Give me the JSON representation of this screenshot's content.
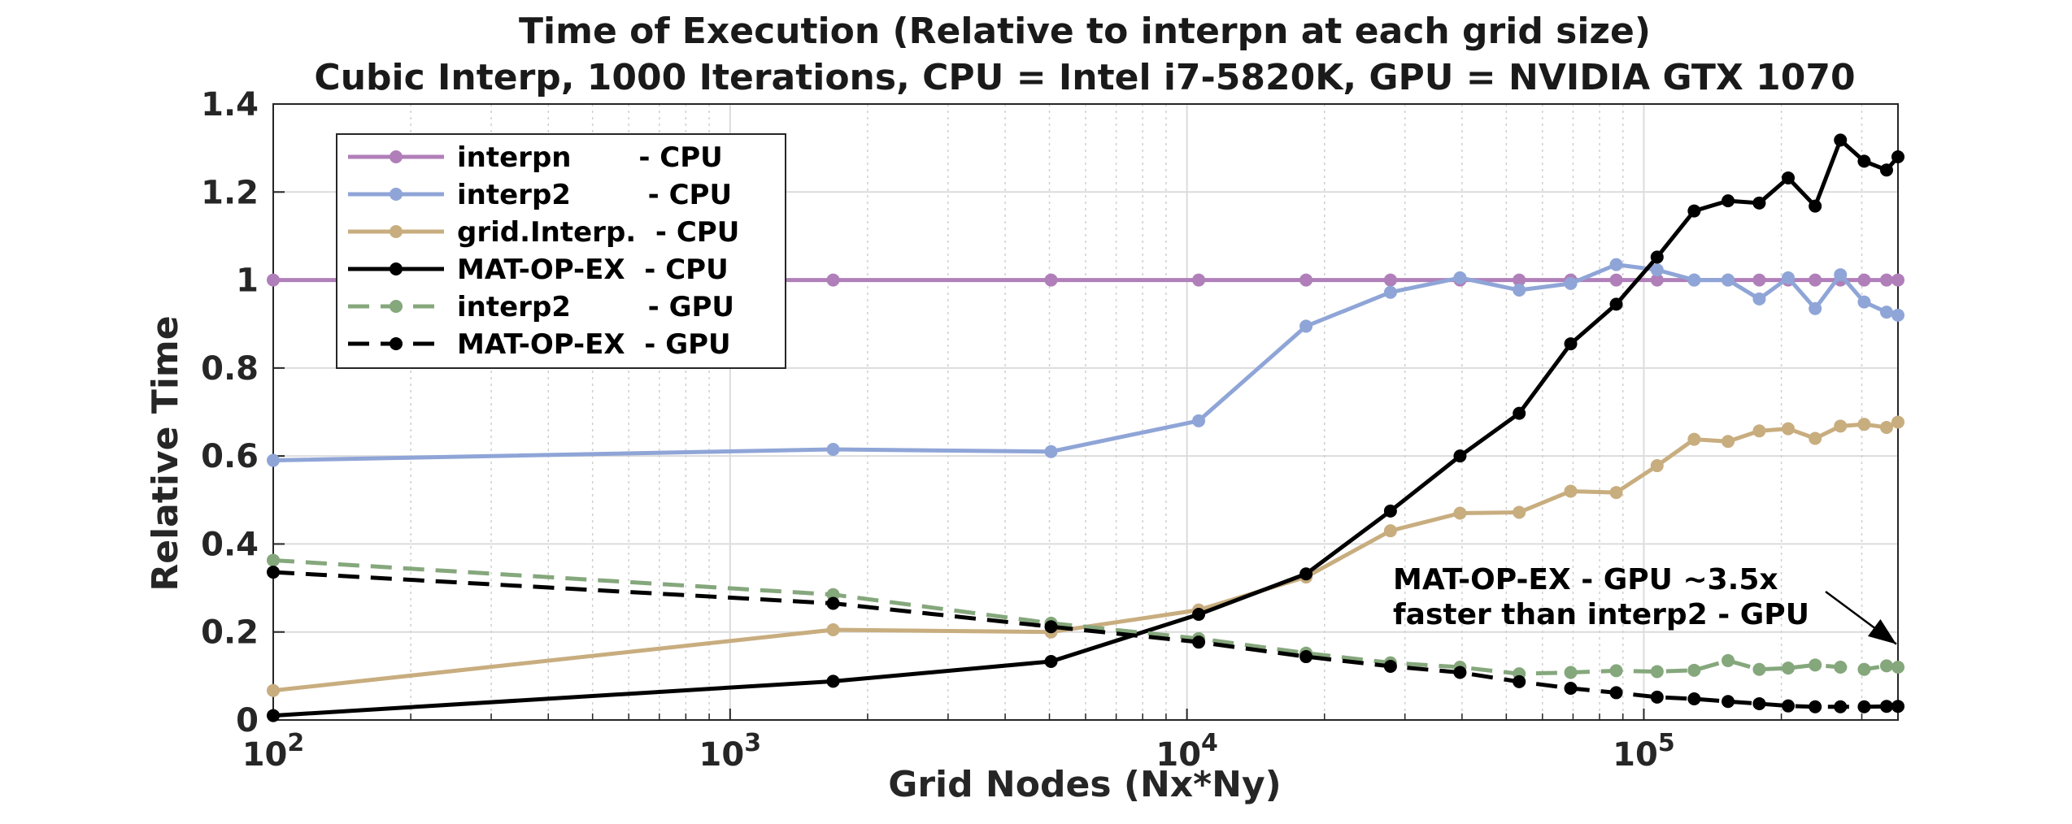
{
  "chart_data": {
    "type": "line",
    "title": "Time of Execution (Relative to interpn at each grid size)",
    "subtitle": "Cubic Interp, 1000 Iterations, CPU = Intel i7-5820K, GPU = NVIDIA GTX 1070",
    "xlabel": "Grid Nodes (Nx*Ny)",
    "ylabel": "Relative Time",
    "x_scale": "log",
    "xlim": [
      100,
      360000
    ],
    "ylim": [
      0,
      1.4
    ],
    "x_ticks": [
      {
        "value": 100,
        "base": "10",
        "exp": "2"
      },
      {
        "value": 1000,
        "base": "10",
        "exp": "3"
      },
      {
        "value": 10000,
        "base": "10",
        "exp": "4"
      },
      {
        "value": 100000,
        "base": "10",
        "exp": "5"
      }
    ],
    "y_ticks": [
      {
        "value": 0,
        "label": "0"
      },
      {
        "value": 0.2,
        "label": "0.2"
      },
      {
        "value": 0.4,
        "label": "0.4"
      },
      {
        "value": 0.6,
        "label": "0.6"
      },
      {
        "value": 0.8,
        "label": "0.8"
      },
      {
        "value": 1,
        "label": "1"
      },
      {
        "value": 1.2,
        "label": "1.2"
      },
      {
        "value": 1.4,
        "label": "1.4"
      }
    ],
    "grid": true,
    "legend_position": "top-left",
    "x": [
      100,
      1681,
      5041,
      10609,
      18225,
      27889,
      39601,
      53361,
      69169,
      87025,
      106929,
      128881,
      152881,
      178929,
      207025,
      237169,
      269361,
      303601,
      339889,
      360000
    ],
    "series": [
      {
        "name": "interpn       - CPU",
        "color": "#b07fb9",
        "dash": "solid",
        "values": [
          1,
          1,
          1,
          1,
          1,
          1,
          1,
          1,
          1,
          1,
          1,
          1,
          1,
          1,
          1,
          1,
          1,
          1,
          1,
          1
        ]
      },
      {
        "name": "interp2        - CPU",
        "color": "#8fa5d7",
        "dash": "solid",
        "values": [
          0.59,
          0.615,
          0.61,
          0.68,
          0.895,
          0.972,
          1.005,
          0.977,
          0.992,
          1.035,
          1.023,
          1.0,
          1.0,
          0.957,
          1.005,
          0.935,
          1.012,
          0.95,
          0.927,
          0.92
        ]
      },
      {
        "name": "grid.Interp.  - CPU",
        "color": "#c8ad7f",
        "dash": "solid",
        "values": [
          0.067,
          0.205,
          0.2,
          0.25,
          0.325,
          0.43,
          0.47,
          0.472,
          0.52,
          0.517,
          0.578,
          0.638,
          0.633,
          0.657,
          0.662,
          0.64,
          0.668,
          0.672,
          0.665,
          0.677
        ]
      },
      {
        "name": "MAT-OP-EX  - CPU",
        "color": "#000000",
        "dash": "solid",
        "values": [
          0.01,
          0.088,
          0.133,
          0.24,
          0.332,
          0.475,
          0.6,
          0.697,
          0.855,
          0.945,
          1.052,
          1.157,
          1.18,
          1.175,
          1.232,
          1.168,
          1.318,
          1.27,
          1.25,
          1.28
        ]
      },
      {
        "name": "interp2        - GPU",
        "color": "#85a77c",
        "dash": "dashed",
        "values": [
          0.363,
          0.285,
          0.22,
          0.185,
          0.152,
          0.13,
          0.12,
          0.105,
          0.108,
          0.112,
          0.11,
          0.113,
          0.135,
          0.115,
          0.118,
          0.125,
          0.12,
          0.115,
          0.123,
          0.12
        ]
      },
      {
        "name": "MAT-OP-EX  - GPU",
        "color": "#000000",
        "dash": "dashed",
        "values": [
          0.336,
          0.265,
          0.212,
          0.177,
          0.144,
          0.122,
          0.108,
          0.087,
          0.072,
          0.062,
          0.052,
          0.048,
          0.042,
          0.037,
          0.032,
          0.03,
          0.03,
          0.03,
          0.031,
          0.031
        ]
      }
    ],
    "annotation": {
      "line1": "MAT-OP-EX - GPU ~3.5x",
      "line2": "faster than interp2 - GPU",
      "arrow_to": {
        "x": 370000,
        "y": 0.165
      }
    }
  }
}
